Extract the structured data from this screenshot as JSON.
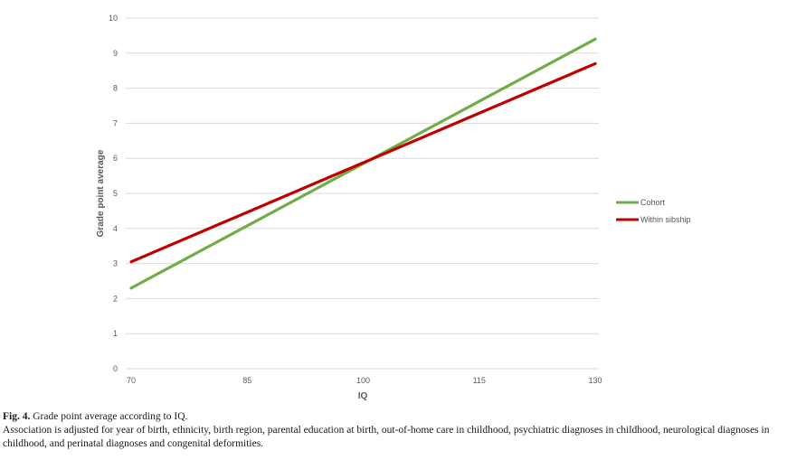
{
  "chart_data": {
    "type": "line",
    "xlabel": "IQ",
    "ylabel": "Grade point average",
    "x_ticks": [
      70,
      85,
      100,
      115,
      130
    ],
    "y_ticks": [
      0,
      1,
      2,
      3,
      4,
      5,
      6,
      7,
      8,
      9,
      10
    ],
    "xlim": [
      70,
      130
    ],
    "ylim": [
      0,
      10
    ],
    "grid": "horizontal",
    "legend_position": "right",
    "series": [
      {
        "name": "Cohort",
        "color": "#70ad47",
        "x": [
          70,
          130
        ],
        "y": [
          2.3,
          9.4
        ]
      },
      {
        "name": "Within sibship",
        "color": "#c00000",
        "x": [
          70,
          130
        ],
        "y": [
          3.05,
          8.7
        ]
      }
    ]
  },
  "caption": {
    "label": "Fig. 4.",
    "title": " Grade point average according to IQ.",
    "note": "Association is adjusted for year of birth, ethnicity, birth region, parental education at birth, out-of-home care in childhood, psychiatric diagnoses in childhood, neurological diagnoses in childhood, and perinatal diagnoses and congenital deformities."
  }
}
